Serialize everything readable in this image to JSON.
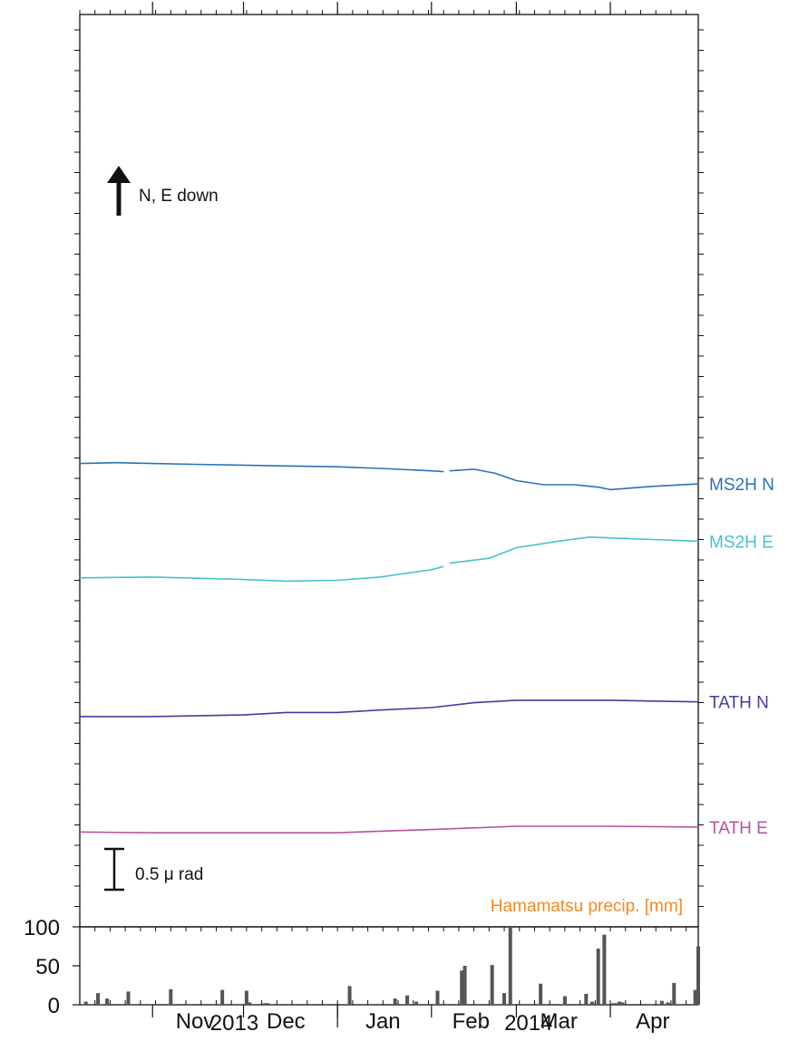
{
  "chart_data": [
    {
      "type": "line",
      "title": "",
      "xlabel": "",
      "ylabel": "",
      "x_axis": {
        "range": [
          "2013-10-08",
          "2014-04-30"
        ],
        "month_labels": [
          "Nov",
          "Dec",
          "Jan",
          "Feb",
          "Mar",
          "Apr"
        ],
        "year_labels": [
          "2013",
          "2014"
        ]
      },
      "orientation_note": "N, E down",
      "scale_bar_label": "0.5 μ rad",
      "series": [
        {
          "name": "MS2H N",
          "color": "#2a73b5",
          "points": [
            [
              "2013-10-08",
              1.36
            ],
            [
              "2013-10-20",
              1.37
            ],
            [
              "2013-11-01",
              1.36
            ],
            [
              "2013-11-15",
              1.35
            ],
            [
              "2013-12-01",
              1.34
            ],
            [
              "2013-12-15",
              1.33
            ],
            [
              "2014-01-01",
              1.32
            ],
            [
              "2014-01-15",
              1.3
            ],
            [
              "2014-02-01",
              1.27
            ],
            [
              "2014-02-05",
              1.26
            ],
            null,
            [
              "2014-02-07",
              1.27
            ],
            [
              "2014-02-15",
              1.29
            ],
            [
              "2014-02-22",
              1.24
            ],
            [
              "2014-03-01",
              1.15
            ],
            [
              "2014-03-10",
              1.1
            ],
            [
              "2014-03-20",
              1.1
            ],
            [
              "2014-03-28",
              1.07
            ],
            [
              "2014-04-01",
              1.04
            ],
            [
              "2014-04-15",
              1.08
            ],
            [
              "2014-04-30",
              1.11
            ]
          ]
        },
        {
          "name": "MS2H E",
          "color": "#45c3cf",
          "points": [
            [
              "2013-10-08",
              0.78
            ],
            [
              "2013-11-01",
              0.79
            ],
            [
              "2013-12-01",
              0.76
            ],
            [
              "2013-12-15",
              0.74
            ],
            [
              "2014-01-01",
              0.75
            ],
            [
              "2014-01-15",
              0.79
            ],
            [
              "2014-02-01",
              0.88
            ],
            [
              "2014-02-05",
              0.92
            ],
            null,
            [
              "2014-02-07",
              0.96
            ],
            [
              "2014-02-20",
              1.02
            ],
            [
              "2014-03-01",
              1.15
            ],
            [
              "2014-03-15",
              1.23
            ],
            [
              "2014-03-25",
              1.28
            ],
            [
              "2014-04-01",
              1.27
            ],
            [
              "2014-04-15",
              1.25
            ],
            [
              "2014-04-30",
              1.23
            ]
          ]
        },
        {
          "name": "TATH N",
          "color": "#3f3f9c",
          "points": [
            [
              "2013-10-08",
              0.09
            ],
            [
              "2013-11-01",
              0.09
            ],
            [
              "2013-12-01",
              0.11
            ],
            [
              "2013-12-15",
              0.14
            ],
            [
              "2014-01-01",
              0.14
            ],
            [
              "2014-01-15",
              0.17
            ],
            [
              "2014-02-01",
              0.2
            ],
            [
              "2014-02-15",
              0.26
            ],
            [
              "2014-03-01",
              0.29
            ],
            [
              "2014-03-15",
              0.29
            ],
            [
              "2014-04-01",
              0.29
            ],
            [
              "2014-04-30",
              0.27
            ]
          ]
        },
        {
          "name": "TATH E",
          "color": "#b5529f",
          "points": [
            [
              "2013-10-08",
              -0.37
            ],
            [
              "2013-11-01",
              -0.38
            ],
            [
              "2013-12-01",
              -0.38
            ],
            [
              "2014-01-01",
              -0.38
            ],
            [
              "2014-01-15",
              -0.36
            ],
            [
              "2014-02-01",
              -0.34
            ],
            [
              "2014-02-15",
              -0.32
            ],
            [
              "2014-03-01",
              -0.3
            ],
            [
              "2014-03-15",
              -0.3
            ],
            [
              "2014-04-01",
              -0.3
            ],
            [
              "2014-04-30",
              -0.31
            ]
          ]
        }
      ]
    },
    {
      "type": "bar",
      "title": "Hamamatsu precip. [mm]",
      "title_color": "#f08a24",
      "bar_color": "#555555",
      "y_ticks": [
        "100",
        "50",
        "0"
      ],
      "ylim": [
        0,
        100
      ],
      "bars": [
        [
          "2013-10-10",
          4
        ],
        [
          "2013-10-14",
          15
        ],
        [
          "2013-10-17",
          8
        ],
        [
          "2013-10-24",
          17
        ],
        [
          "2013-11-07",
          20
        ],
        [
          "2013-11-24",
          19
        ],
        [
          "2013-12-02",
          18
        ],
        [
          "2013-12-03",
          3
        ],
        [
          "2013-12-08",
          2
        ],
        [
          "2013-12-09",
          2
        ],
        [
          "2014-01-05",
          24
        ],
        [
          "2014-01-20",
          8
        ],
        [
          "2014-01-24",
          12
        ],
        [
          "2014-01-27",
          4
        ],
        [
          "2014-02-03",
          18
        ],
        [
          "2014-02-11",
          44
        ],
        [
          "2014-02-12",
          50
        ],
        [
          "2014-02-21",
          51
        ],
        [
          "2014-02-25",
          15
        ],
        [
          "2014-02-27",
          100
        ],
        [
          "2014-03-09",
          27
        ],
        [
          "2014-03-17",
          11
        ],
        [
          "2014-03-24",
          14
        ],
        [
          "2014-03-26",
          4
        ],
        [
          "2014-03-28",
          72
        ],
        [
          "2014-03-30",
          90
        ],
        [
          "2014-04-02",
          2
        ],
        [
          "2014-04-03",
          2
        ],
        [
          "2014-04-04",
          4
        ],
        [
          "2014-04-05",
          3
        ],
        [
          "2014-04-18",
          5
        ],
        [
          "2014-04-20",
          3
        ],
        [
          "2014-04-22",
          28
        ],
        [
          "2014-04-29",
          19
        ],
        [
          "2014-04-30",
          75
        ]
      ]
    }
  ]
}
